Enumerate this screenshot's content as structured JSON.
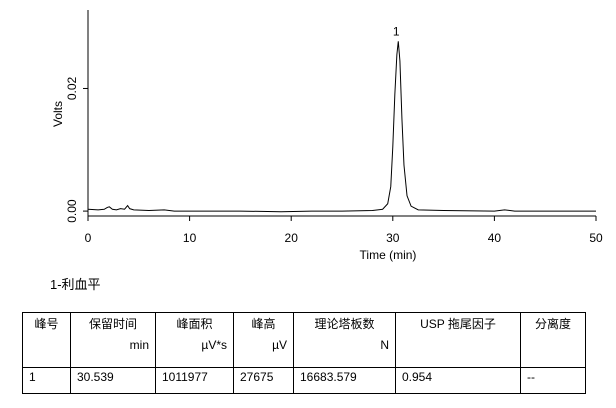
{
  "chart_data": {
    "type": "line",
    "xlabel": "Time (min)",
    "ylabel": "Volts",
    "x": [
      0,
      1,
      1.6,
      1.9,
      2.1,
      2.4,
      2.8,
      3.2,
      3.6,
      3.9,
      4.1,
      4.5,
      6,
      7.5,
      8.5,
      10,
      15,
      19,
      22,
      25,
      28,
      29,
      29.5,
      29.8,
      30.0,
      30.2,
      30.4,
      30.539,
      30.7,
      30.9,
      31.1,
      31.4,
      31.8,
      32.5,
      35,
      40,
      41,
      42,
      45,
      50
    ],
    "series": [
      {
        "name": "Volts",
        "color": "#000000",
        "values": [
          0.0003,
          0.0002,
          0.0003,
          0.0006,
          0.0007,
          0.0003,
          0.0002,
          0.0004,
          0.0003,
          0.0009,
          0.0004,
          0.0002,
          0.0001,
          0.0002,
          0,
          0,
          0,
          -0.0001,
          0,
          0,
          0.0001,
          0.0003,
          0.0012,
          0.004,
          0.0105,
          0.019,
          0.0255,
          0.0277,
          0.0245,
          0.015,
          0.0075,
          0.0025,
          0.0008,
          0.0002,
          0.0001,
          0,
          0.0002,
          0,
          0,
          0
        ]
      }
    ],
    "xlim": [
      0,
      50
    ],
    "xticks": [
      0,
      10,
      20,
      30,
      40,
      50
    ],
    "ylim": [
      -0.0008,
      0.0328
    ],
    "yticks": [
      {
        "value": 0,
        "label": "0.00"
      },
      0.02
    ],
    "peak_label": "1"
  },
  "caption": "1-利血平",
  "table": {
    "header": [
      [
        "峰号"
      ],
      [
        "保留时间",
        "min"
      ],
      [
        "峰面积",
        "µV*s"
      ],
      [
        "峰高",
        "µV"
      ],
      [
        "理论塔板数",
        "N"
      ],
      [
        "USP 拖尾因子"
      ],
      [
        "分离度"
      ]
    ],
    "rows": [
      [
        "1",
        "30.539",
        "1011977",
        "27675",
        "16683.579",
        "0.954",
        "--"
      ]
    ]
  }
}
